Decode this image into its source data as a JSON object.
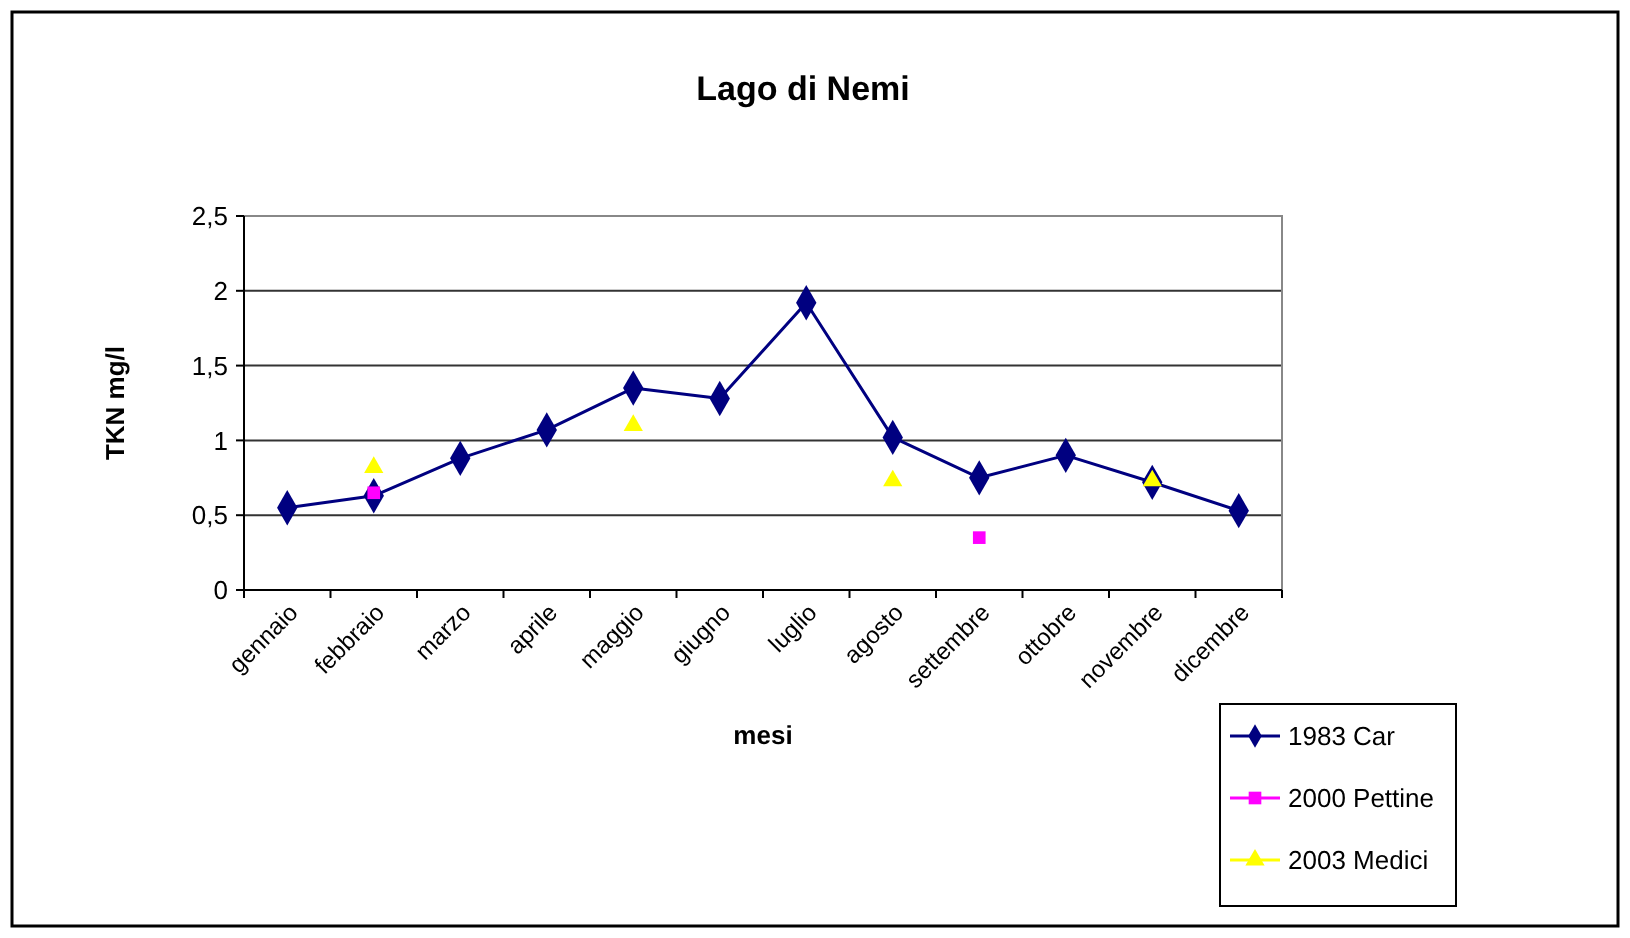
{
  "chart_data": {
    "type": "line",
    "title": "Lago di Nemi",
    "xlabel": "mesi",
    "ylabel": "TKN mg/l",
    "categories": [
      "gennaio",
      "febbraio",
      "marzo",
      "aprile",
      "maggio",
      "giugno",
      "luglio",
      "agosto",
      "settembre",
      "ottobre",
      "novembre",
      "dicembre"
    ],
    "series": [
      {
        "name": "1983 Car",
        "color": "#000080",
        "marker": "diamond",
        "values": [
          0.55,
          0.63,
          0.88,
          1.07,
          1.35,
          1.28,
          1.92,
          1.02,
          0.75,
          0.9,
          0.72,
          0.53
        ]
      },
      {
        "name": "2000 Pettine",
        "color": "#ff00ff",
        "marker": "square",
        "type": "scatter",
        "values": [
          null,
          0.65,
          null,
          null,
          null,
          null,
          null,
          null,
          0.35,
          null,
          null,
          null
        ]
      },
      {
        "name": "2003 Medici",
        "color": "#ffff00",
        "marker": "triangle",
        "type": "scatter",
        "values": [
          null,
          0.82,
          null,
          null,
          1.1,
          null,
          null,
          0.73,
          null,
          null,
          0.73,
          null
        ]
      }
    ],
    "ylim": [
      0,
      2.5
    ],
    "yticks": [
      0,
      {
        "value": 0.5,
        "label": "0,5"
      },
      1,
      {
        "value": 1.5,
        "label": "1,5"
      },
      2,
      {
        "value": 2.5,
        "label": "2,5"
      }
    ],
    "grid": "y",
    "legend": "bottom right"
  }
}
